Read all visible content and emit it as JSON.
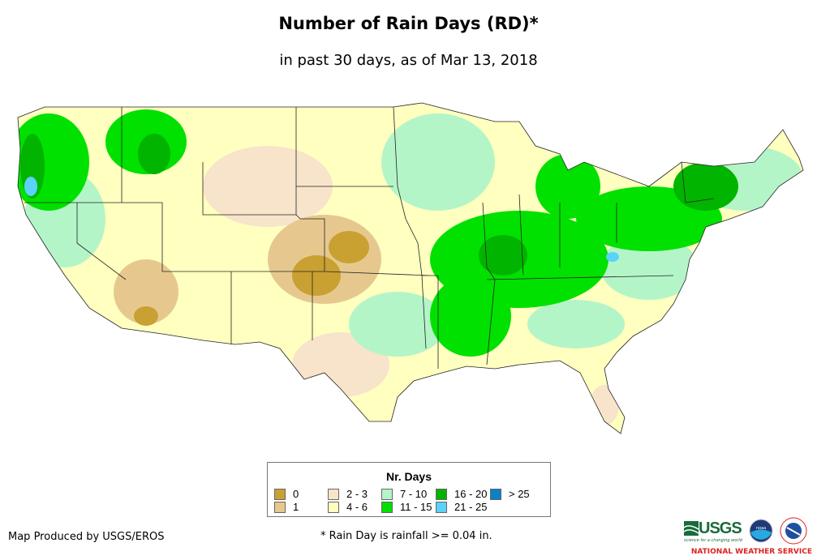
{
  "title": "Number of Rain Days (RD)*",
  "subtitle": "in past 30 days, as of Mar 13, 2018",
  "legend": {
    "title": "Nr. Days",
    "items": [
      {
        "label": "0",
        "color": "#c9a032"
      },
      {
        "label": "1",
        "color": "#e6c88f"
      },
      {
        "label": "2 - 3",
        "color": "#f7e4cb"
      },
      {
        "label": "4 - 6",
        "color": "#ffffc0"
      },
      {
        "label": "7 - 10",
        "color": "#b4f5c8"
      },
      {
        "label": "11 - 15",
        "color": "#00e100"
      },
      {
        "label": "16 - 20",
        "color": "#00b400"
      },
      {
        "label": "21 - 25",
        "color": "#5ad2fa"
      },
      {
        "label": "> 25",
        "color": "#0a82c8"
      }
    ]
  },
  "credit": "Map Produced by USGS/EROS",
  "footnote": "* Rain Day is rainfall >= 0.04 in.",
  "logos": {
    "usgs": "USGS",
    "usgs_tagline": "science for a changing world",
    "noaa": "noaa",
    "nws": "NATIONAL WEATHER SERVICE"
  }
}
